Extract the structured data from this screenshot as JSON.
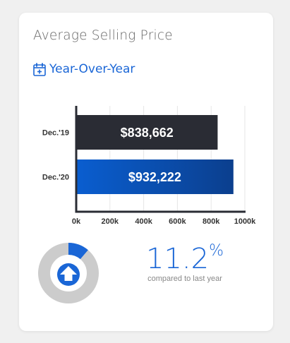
{
  "card": {
    "title": "Average Selling Price",
    "period_link": {
      "label": "Year-Over-Year",
      "icon": "calendar-plus-icon"
    }
  },
  "chart_data": {
    "type": "bar",
    "orientation": "horizontal",
    "categories": [
      "Dec.'19",
      "Dec.'20"
    ],
    "values": [
      838662,
      932222
    ],
    "data_labels": [
      "$838,662",
      "$932,222"
    ],
    "xticks": [
      "0k",
      "200k",
      "400k",
      "600k",
      "800k",
      "1000k"
    ],
    "xlim": [
      0,
      1000000
    ],
    "grid": "vertical",
    "colors": [
      "#2a2c34",
      "#0a4fb3"
    ]
  },
  "summary": {
    "change_value": "11.2",
    "change_unit": "%",
    "caption": "compared to last year",
    "gauge_fraction": 0.112,
    "direction_icon": "arrow-up-icon",
    "accent_color": "#1a66d6",
    "track_color": "#cccccc"
  }
}
